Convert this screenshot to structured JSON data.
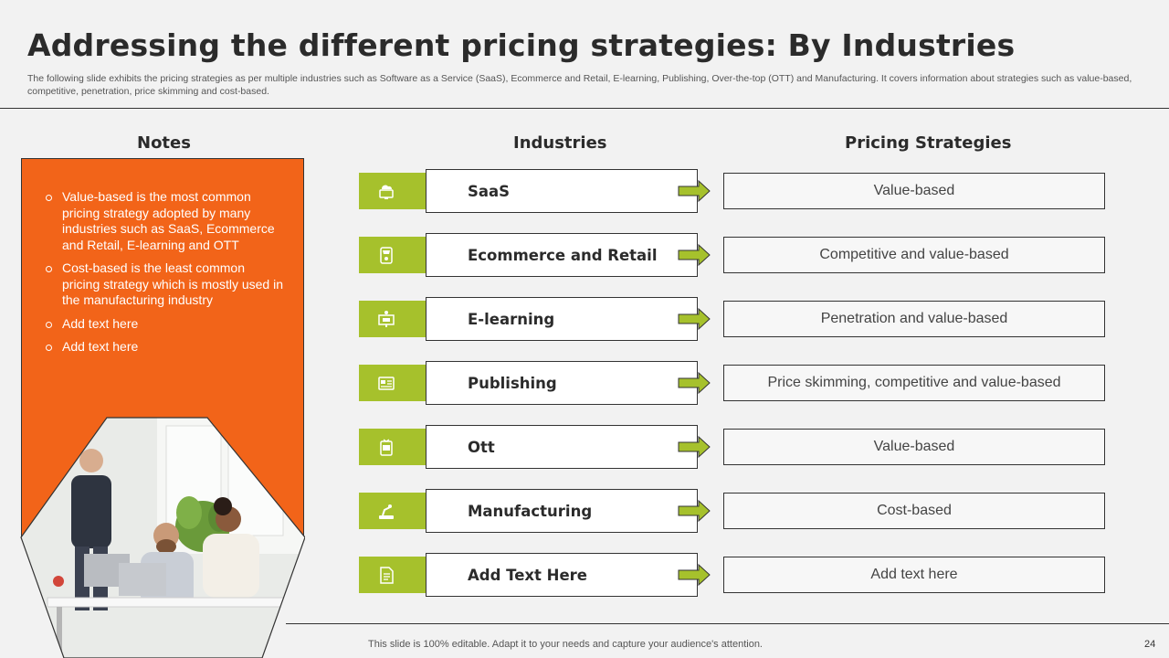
{
  "title": "Addressing the different pricing strategies: By Industries",
  "subtitle": "The following slide exhibits the pricing strategies as per multiple industries such as Software as a Service (SaaS), Ecommerce and Retail, E-learning, Publishing, Over-the-top (OTT) and Manufacturing. It covers information about strategies such as value-based, competitive, penetration, price skimming and cost-based.",
  "headers": {
    "notes": "Notes",
    "industries": "Industries",
    "strategies": "Pricing Strategies"
  },
  "notes": [
    "Value-based is the most common pricing strategy adopted by many industries such as SaaS, Ecommerce and Retail, E-learning and OTT",
    "Cost-based is the least common pricing strategy which is mostly used in the manufacturing industry",
    "Add text here",
    "Add text here"
  ],
  "rows": [
    {
      "industry": "SaaS",
      "strategy": "Value-based",
      "icon": "saas-cloud-monitor-icon"
    },
    {
      "industry": "Ecommerce and Retail",
      "strategy": "Competitive and value-based",
      "icon": "ecommerce-store-icon"
    },
    {
      "industry": "E-learning",
      "strategy": "Penetration and value-based",
      "icon": "elearning-board-icon"
    },
    {
      "industry": "Publishing",
      "strategy": "Price skimming, competitive and value-based",
      "icon": "publishing-newspaper-icon"
    },
    {
      "industry": "Ott",
      "strategy": "Value-based",
      "icon": "ott-tv-icon"
    },
    {
      "industry": "Manufacturing",
      "strategy": "Cost-based",
      "icon": "manufacturing-robot-arm-icon"
    },
    {
      "industry": "Add Text Here",
      "strategy": "Add text here",
      "icon": "document-icon"
    }
  ],
  "footer": {
    "text": "This slide is 100% editable. Adapt it to your needs and capture your audience's attention.",
    "page": "24"
  },
  "colors": {
    "accent_orange": "#f26419",
    "accent_green": "#a6c12c",
    "text_dark": "#2b2b2b"
  }
}
